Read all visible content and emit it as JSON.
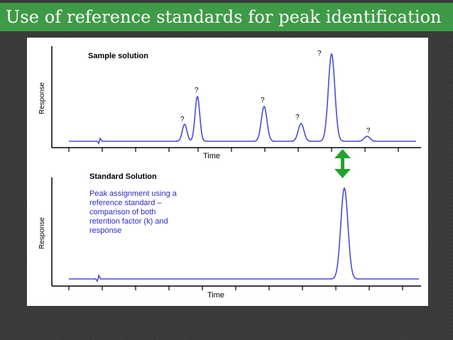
{
  "slide": {
    "title": "Use of reference standards for peak identification",
    "accent_color": "#3f9a47"
  },
  "sample_panel": {
    "title": "Sample solution",
    "ylabel": "Response",
    "xlabel": "Time",
    "peak_marker": "?"
  },
  "standard_panel": {
    "title": "Standard Solution",
    "ylabel": "Response",
    "xlabel": "Time",
    "note_lines": [
      "Peak assignment using a",
      "reference standard –",
      "comparison of both",
      "retention factor (k) and",
      "response"
    ]
  },
  "colors": {
    "trace": "#4a4ad8",
    "note_text": "#2a2acc",
    "arrow": "#22a22a"
  },
  "arrow_icon": "double-headed-vertical-arrow"
}
